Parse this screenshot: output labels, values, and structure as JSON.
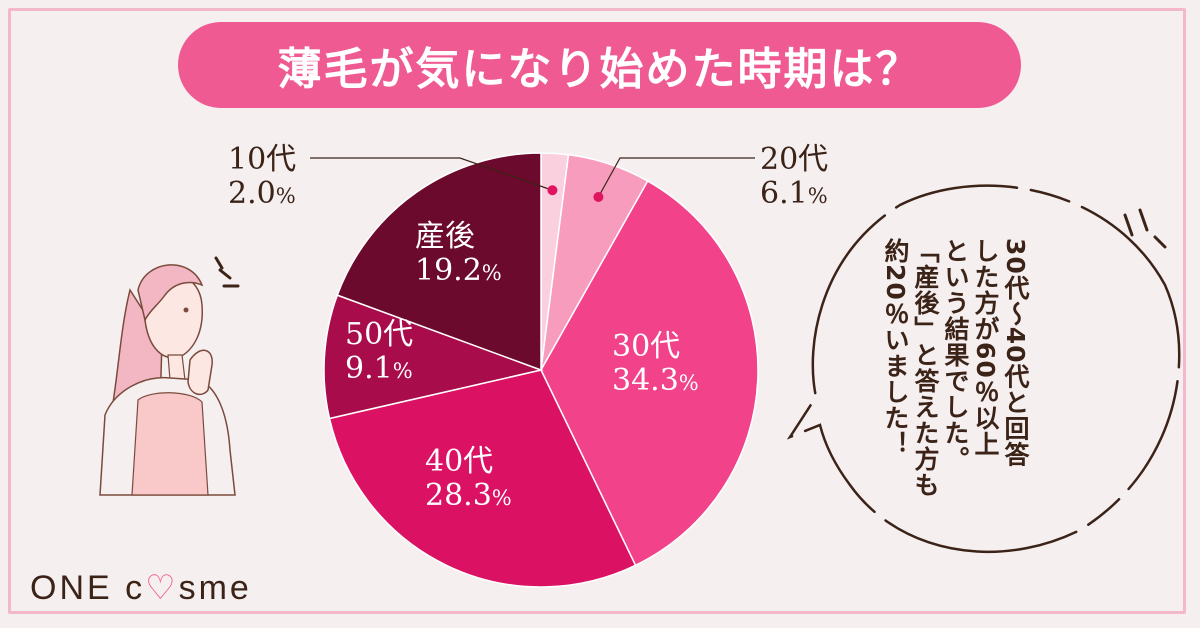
{
  "title": "薄毛が気になり始めた時期は？",
  "chart_data": {
    "type": "pie",
    "title": "薄毛が気になり始めた時期は？",
    "slices": [
      {
        "label": "10代",
        "value": 2.0,
        "value_text": "2.0",
        "unit": "%",
        "color": "#fbd0de"
      },
      {
        "label": "20代",
        "value": 6.1,
        "value_text": "6.1",
        "unit": "%",
        "color": "#f79cbd"
      },
      {
        "label": "30代",
        "value": 34.3,
        "value_text": "34.3",
        "unit": "%",
        "color": "#f1428a"
      },
      {
        "label": "40代",
        "value": 28.3,
        "value_text": "28.3",
        "unit": "%",
        "color": "#db1263"
      },
      {
        "label": "50代",
        "value": 9.1,
        "value_text": "9.1",
        "unit": "%",
        "color": "#a80c4b"
      },
      {
        "label": "産後",
        "value": 19.2,
        "value_text": "19.2",
        "unit": "%",
        "color": "#6b0a2c"
      }
    ]
  },
  "bubble": {
    "lines": [
      "30代～40代と回答",
      "した方が60％以上",
      "という結果でした。",
      "「産後」と答えた方も",
      "約20％いました！"
    ]
  },
  "logo": {
    "prefix": "ONE c",
    "heart": "♡",
    "suffix": "sme"
  },
  "colors": {
    "accent": "#ef5a92",
    "background": "#f6eff0",
    "border": "#f4b8cc",
    "text": "#3b2318"
  }
}
